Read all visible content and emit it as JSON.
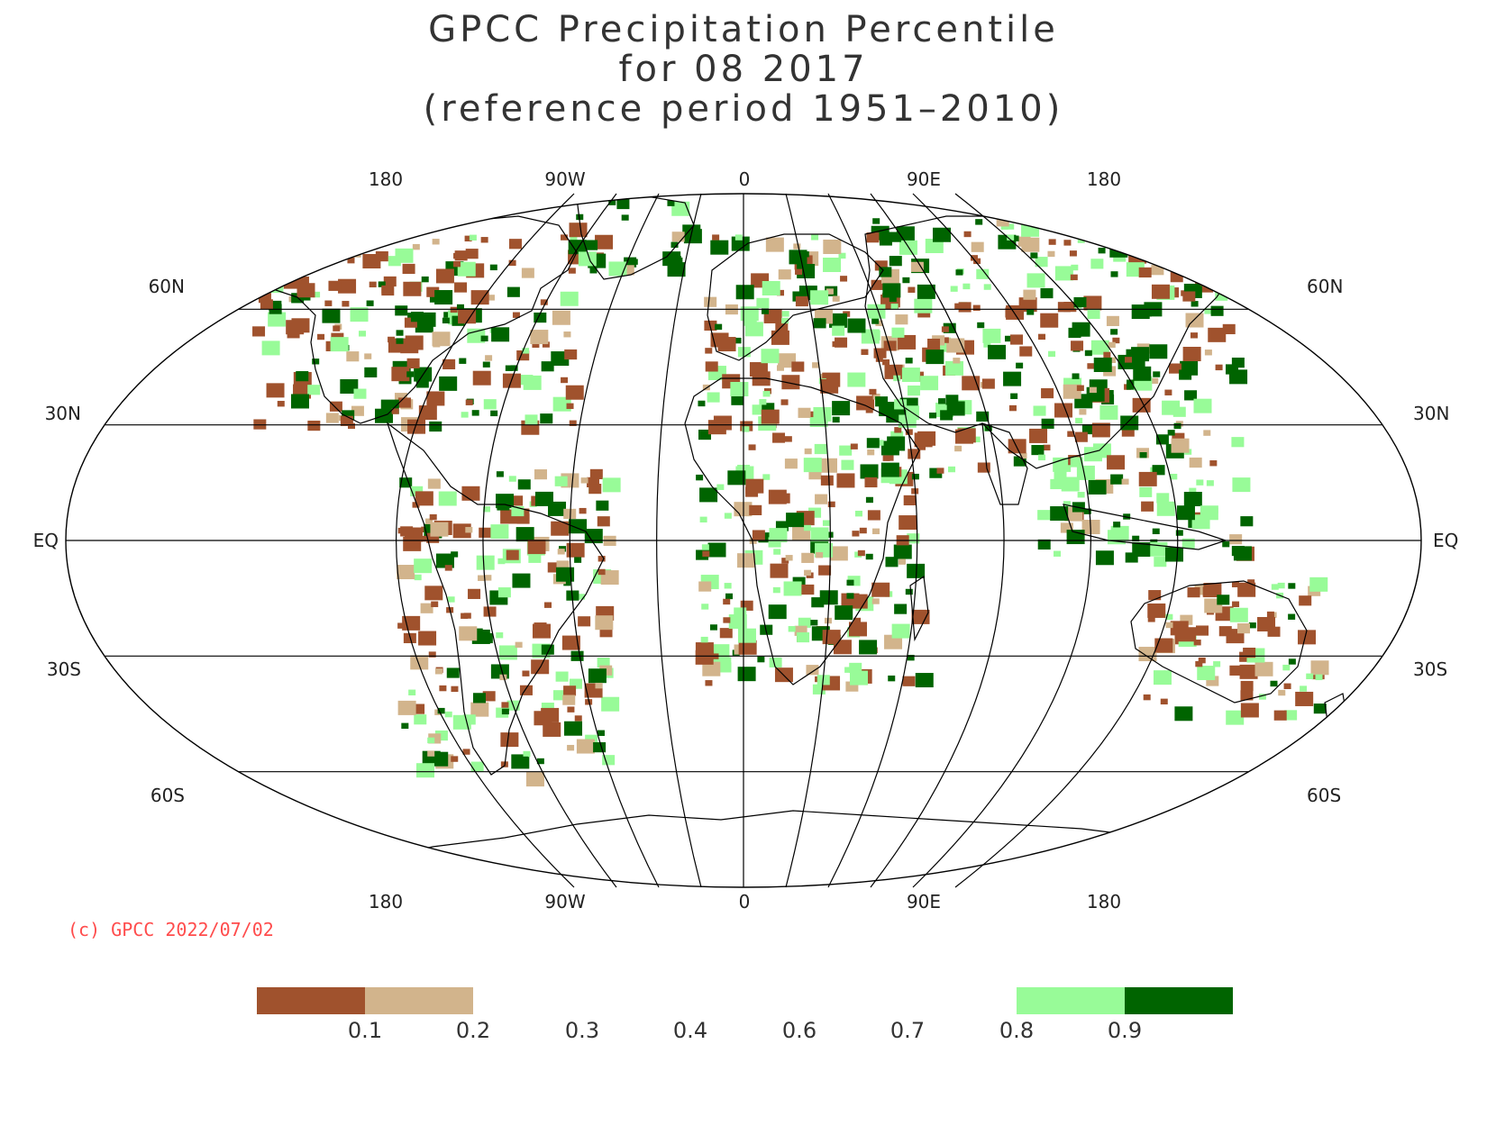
{
  "title": {
    "line1": "GPCC Precipitation Percentile",
    "line2": "for 08 2017",
    "line3": "(reference period 1951–2010)"
  },
  "credit": "(c) GPCC 2022/07/02",
  "map": {
    "projection": "Robinson",
    "graticule_lon_labels": [
      "180",
      "90W",
      "0",
      "90E",
      "180"
    ],
    "graticule_lat_labels_left": [
      "60N",
      "30N",
      "EQ",
      "30S",
      "60S"
    ],
    "graticule_lat_labels_right": [
      "60N",
      "30N",
      "EQ",
      "30S",
      "60S"
    ]
  },
  "legend": {
    "colors": {
      "p_below_0_1": "#a0522d",
      "p_0_1_0_2": "#d2b48c",
      "p_0_8_0_9": "#98fb98",
      "p_above_0_9": "#006400"
    },
    "labels": [
      "0.1",
      "0.2",
      "0.3",
      "0.4",
      "0.6",
      "0.7",
      "0.8",
      "0.9"
    ]
  }
}
